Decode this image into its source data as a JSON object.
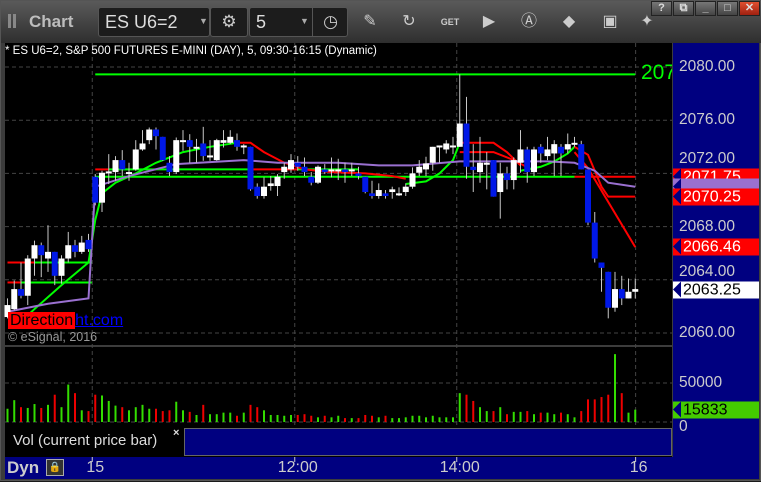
{
  "window": {
    "title": "Chart",
    "buttons": [
      "?",
      "restore",
      "minimize",
      "maximize",
      "close"
    ],
    "symbol": "ES U6=2",
    "interval": "5",
    "toolbar_icons": [
      "gear-icon",
      "clock-icon",
      "pencil-icon",
      "refresh-chart-icon",
      "get-icon",
      "play-icon",
      "a-icon",
      "link-icon",
      "comment-icon",
      "twitter-icon"
    ]
  },
  "chart": {
    "info": "* ES U6=2, S&P 500 FUTURES E-MINI (DAY), 5, 09:30-16:15 (Dynamic)",
    "watermark_a": "Direction",
    "watermark_b": "ht.com",
    "copyright": "© eSignal, 2016",
    "top_level_label": "207",
    "price_labels": [
      "2080.00",
      "2076.00",
      "2072.00",
      "2068.00",
      "2064.00",
      "2060.00"
    ],
    "price_ticks": [
      2080,
      2076,
      2072,
      2068,
      2064,
      2060
    ],
    "markers": [
      {
        "label": "2071.75",
        "price": 2071.75,
        "bg": "#ff0000",
        "fg": "#ffffff"
      },
      {
        "label": "",
        "price": 2071.0,
        "bg": "#9a70d0",
        "fg": "#ffffff"
      },
      {
        "label": "2070.25",
        "price": 2070.25,
        "bg": "#ff0000",
        "fg": "#ffffff"
      },
      {
        "label": "2066.46",
        "price": 2066.46,
        "bg": "#ff0000",
        "fg": "#ffffff"
      },
      {
        "label": "2063.25",
        "price": 2063.25,
        "bg": "#ffffff",
        "fg": "#000000"
      }
    ],
    "time_labels": [
      {
        "label": "15",
        "bar": 13
      },
      {
        "label": "12:00",
        "bar": 43
      },
      {
        "label": "14:00",
        "bar": 67
      },
      {
        "label": "16",
        "bar": 93.5
      }
    ],
    "colors": {
      "up": "#ffffff",
      "down": "#0018e8",
      "wick": "#c8c8c8",
      "vol_up": "#33dd00",
      "vol_down": "#ee0000",
      "green": "#00ff00",
      "red": "#ff0000",
      "purple": "#9a70d0"
    },
    "candles": [
      [
        2061.2,
        2062.6,
        2061.1,
        2062.1
      ],
      [
        2061.8,
        2063.95,
        2061.7,
        2063.3
      ],
      [
        2063.3,
        2065.3,
        2062.6,
        2062.8
      ],
      [
        2062.8,
        2065.85,
        2062.1,
        2065.6
      ],
      [
        2065.6,
        2066.95,
        2064.3,
        2066.6
      ],
      [
        2066.6,
        2066.8,
        2064.2,
        2065.85
      ],
      [
        2065.6,
        2068.1,
        2064.6,
        2066.1
      ],
      [
        2066.1,
        2066.1,
        2063.6,
        2064.3
      ],
      [
        2064.3,
        2065.85,
        2063.7,
        2065.6
      ],
      [
        2065.6,
        2067.6,
        2065.3,
        2066.6
      ],
      [
        2066.6,
        2067.0,
        2065.7,
        2066.1
      ],
      [
        2066.1,
        2067.3,
        2065.95,
        2066.8
      ],
      [
        2067.0,
        2067.45,
        2066.1,
        2066.3
      ],
      [
        2071.75,
        2071.95,
        2069.6,
        2069.8
      ],
      [
        2069.8,
        2072.2,
        2069.1,
        2072.05
      ],
      [
        2072.0,
        2073.45,
        2071.2,
        2072.15
      ],
      [
        2072.1,
        2073.3,
        2071.45,
        2073.0
      ],
      [
        2073.0,
        2073.75,
        2071.8,
        2072.3
      ],
      [
        2072.0,
        2072.8,
        2071.45,
        2072.1
      ],
      [
        2072.3,
        2074.5,
        2072.2,
        2073.8
      ],
      [
        2073.8,
        2075.25,
        2073.7,
        2074.25
      ],
      [
        2074.5,
        2075.45,
        2074.2,
        2075.3
      ],
      [
        2075.3,
        2075.45,
        2073.8,
        2074.8
      ],
      [
        2074.75,
        2074.75,
        2072.95,
        2073.0
      ],
      [
        2072.8,
        2073.3,
        2071.8,
        2072.1
      ],
      [
        2072.1,
        2074.7,
        2071.95,
        2074.5
      ],
      [
        2074.4,
        2075.25,
        2073.7,
        2074.5
      ],
      [
        2074.5,
        2074.95,
        2072.8,
        2074.0
      ],
      [
        2073.85,
        2074.6,
        2072.8,
        2074.0
      ],
      [
        2074.25,
        2075.5,
        2072.95,
        2073.3
      ],
      [
        2073.2,
        2074.5,
        2072.95,
        2073.35
      ],
      [
        2073.0,
        2074.6,
        2072.95,
        2074.5
      ],
      [
        2074.3,
        2075.25,
        2073.95,
        2074.5
      ],
      [
        2074.3,
        2075.25,
        2074.2,
        2074.75
      ],
      [
        2074.5,
        2075.0,
        2073.7,
        2074.0
      ],
      [
        2074.0,
        2074.2,
        2073.45,
        2074.1
      ],
      [
        2074.0,
        2074.0,
        2070.7,
        2070.8
      ],
      [
        2071.0,
        2071.25,
        2070.1,
        2070.3
      ],
      [
        2070.3,
        2071.7,
        2070.1,
        2071.0
      ],
      [
        2071.05,
        2071.8,
        2070.7,
        2071.25
      ],
      [
        2071.05,
        2071.95,
        2070.3,
        2071.75
      ],
      [
        2072.1,
        2072.8,
        2071.6,
        2072.5
      ],
      [
        2072.3,
        2073.45,
        2072.05,
        2073.0
      ],
      [
        2072.8,
        2073.3,
        2072.2,
        2072.5
      ],
      [
        2072.5,
        2073.2,
        2071.8,
        2072.1
      ],
      [
        2071.75,
        2072.1,
        2071.1,
        2071.3
      ],
      [
        2071.3,
        2072.6,
        2071.2,
        2072.5
      ],
      [
        2072.3,
        2072.7,
        2071.95,
        2072.1
      ],
      [
        2072.2,
        2073.2,
        2071.7,
        2072.3
      ],
      [
        2072.2,
        2073.1,
        2071.5,
        2072.3
      ],
      [
        2072.3,
        2072.8,
        2071.3,
        2072.1
      ],
      [
        2072.15,
        2072.8,
        2071.8,
        2072.3
      ],
      [
        2072.0,
        2072.5,
        2071.55,
        2071.8
      ],
      [
        2071.75,
        2071.75,
        2070.5,
        2070.6
      ],
      [
        2070.5,
        2071.45,
        2070.1,
        2070.3
      ],
      [
        2070.3,
        2071.25,
        2070.1,
        2070.75
      ],
      [
        2070.5,
        2070.75,
        2070.1,
        2070.3
      ],
      [
        2070.6,
        2071.0,
        2070.1,
        2070.8
      ],
      [
        2070.45,
        2070.95,
        2070.3,
        2070.5
      ],
      [
        2070.6,
        2071.25,
        2070.3,
        2071.0
      ],
      [
        2071.0,
        2072.45,
        2070.85,
        2072.0
      ],
      [
        2072.05,
        2073.0,
        2071.8,
        2072.5
      ],
      [
        2072.3,
        2073.25,
        2071.8,
        2072.75
      ],
      [
        2072.8,
        2074.0,
        2072.2,
        2074.0
      ],
      [
        2074.0,
        2074.1,
        2072.8,
        2074.1
      ],
      [
        2073.8,
        2074.5,
        2073.5,
        2074.25
      ],
      [
        2074.0,
        2074.75,
        2073.45,
        2074.1
      ],
      [
        2074.0,
        2079.45,
        2074.0,
        2075.75
      ],
      [
        2075.75,
        2077.75,
        2071.6,
        2072.5
      ],
      [
        2072.5,
        2074.2,
        2070.6,
        2072.25
      ],
      [
        2072.1,
        2074.75,
        2071.3,
        2072.8
      ],
      [
        2072.7,
        2073.6,
        2070.8,
        2072.8
      ],
      [
        2073.0,
        2073.0,
        2070.25,
        2070.25
      ],
      [
        2070.6,
        2072.8,
        2068.6,
        2072.0
      ],
      [
        2072.0,
        2072.5,
        2070.8,
        2071.5
      ],
      [
        2071.5,
        2073.2,
        2070.8,
        2073.0
      ],
      [
        2072.8,
        2075.25,
        2072.05,
        2073.8
      ],
      [
        2073.8,
        2074.0,
        2071.3,
        2072.1
      ],
      [
        2072.1,
        2074.0,
        2071.8,
        2073.8
      ],
      [
        2074.0,
        2074.2,
        2072.8,
        2073.5
      ],
      [
        2073.3,
        2074.75,
        2073.0,
        2073.8
      ],
      [
        2073.5,
        2074.5,
        2071.8,
        2074.2
      ],
      [
        2074.0,
        2074.2,
        2071.8,
        2073.5
      ],
      [
        2073.8,
        2075.0,
        2073.5,
        2074.2
      ],
      [
        2074.2,
        2074.75,
        2074.0,
        2074.3
      ],
      [
        2074.2,
        2074.45,
        2072.3,
        2072.3
      ],
      [
        2072.3,
        2072.3,
        2068.1,
        2068.3
      ],
      [
        2068.3,
        2069.1,
        2065.3,
        2065.6
      ],
      [
        2065.3,
        2065.3,
        2063.1,
        2064.9
      ],
      [
        2064.6,
        2064.6,
        2061.1,
        2061.9
      ],
      [
        2061.9,
        2064.6,
        2061.6,
        2063.3
      ],
      [
        2063.3,
        2064.3,
        2062.1,
        2062.6
      ],
      [
        2062.6,
        2064.1,
        2062.6,
        2063.1
      ],
      [
        2063.1,
        2064.1,
        2062.6,
        2063.3
      ]
    ],
    "levels": [
      {
        "price": 2079.45,
        "from": 13,
        "to": 93,
        "color": "#00ff00"
      },
      {
        "price": 2065.3,
        "from": 0,
        "to": 4,
        "color": "#ff0000"
      },
      {
        "price": 2065.3,
        "from": 4,
        "to": 12.5,
        "color": "#00ff00"
      },
      {
        "price": 2063.8,
        "from": 0,
        "to": 2,
        "color": "#ff0000"
      },
      {
        "price": 2063.8,
        "from": 2,
        "to": 12.5,
        "color": "#00ff00"
      },
      {
        "price": 2071.75,
        "from": 13,
        "to": 84,
        "color": "#00ff00"
      },
      {
        "price": 2071.75,
        "from": 84,
        "to": 93,
        "color": "#ff0000"
      },
      {
        "price": 2072.3,
        "from": 13,
        "to": 15,
        "color": "#ff0000"
      },
      {
        "price": 2072.3,
        "from": 15,
        "to": 36,
        "color": "#00ff00"
      },
      {
        "price": 2072.3,
        "from": 36,
        "to": 43,
        "color": "#ff0000"
      },
      {
        "price": 2072.3,
        "from": 43,
        "to": 52,
        "color": "#00ff00"
      }
    ],
    "lines": [
      {
        "color": "#00ff00",
        "points": [
          [
            1,
            2060.4
          ],
          [
            4,
            2061.8
          ],
          [
            8,
            2063.6
          ],
          [
            12,
            2065.3
          ],
          [
            13,
            2068.5
          ],
          [
            14,
            2070.5
          ],
          [
            16,
            2071.3
          ],
          [
            19,
            2072.0
          ],
          [
            22,
            2072.8
          ],
          [
            26,
            2073.6
          ],
          [
            30,
            2074.0
          ],
          [
            34,
            2074.3
          ]
        ]
      },
      {
        "color": "#ff0000",
        "points": [
          [
            34,
            2074.3
          ],
          [
            36,
            2074.3
          ],
          [
            38,
            2073.6
          ],
          [
            41,
            2072.8
          ],
          [
            44,
            2072.3
          ],
          [
            48,
            2072.1
          ],
          [
            53,
            2072.0
          ],
          [
            57,
            2071.8
          ],
          [
            59,
            2071.6
          ]
        ]
      },
      {
        "color": "#00ff00",
        "points": [
          [
            59,
            2071.2
          ],
          [
            62,
            2071.4
          ],
          [
            64,
            2072.0
          ],
          [
            66,
            2073.0
          ],
          [
            67,
            2074.3
          ]
        ]
      },
      {
        "color": "#ff0000",
        "points": [
          [
            67,
            2074.3
          ],
          [
            72,
            2074.3
          ],
          [
            74,
            2073.6
          ],
          [
            76,
            2072.6
          ]
        ]
      },
      {
        "color": "#ff0000",
        "points": [
          [
            67,
            2073.6
          ],
          [
            72,
            2073.6
          ],
          [
            75,
            2073.0
          ],
          [
            78,
            2072.2
          ]
        ]
      },
      {
        "color": "#00ff00",
        "points": [
          [
            76,
            2072.2
          ],
          [
            79,
            2072.5
          ],
          [
            81,
            2072.9
          ],
          [
            83,
            2073.5
          ],
          [
            84,
            2074.0
          ]
        ]
      },
      {
        "color": "#ff0000",
        "points": [
          [
            84,
            2074.0
          ],
          [
            86,
            2073.4
          ],
          [
            88,
            2071.0
          ],
          [
            89,
            2070.25
          ],
          [
            93,
            2070.25
          ]
        ]
      },
      {
        "color": "#ff0000",
        "points": [
          [
            84,
            2073.6
          ],
          [
            86,
            2072.4
          ],
          [
            93,
            2066.46
          ]
        ]
      },
      {
        "color": "#9a70d0",
        "points": [
          [
            0,
            2061.6
          ],
          [
            6,
            2062.2
          ],
          [
            12,
            2062.6
          ],
          [
            13,
            2071.0
          ],
          [
            18,
            2071.8
          ],
          [
            25,
            2072.7
          ],
          [
            35,
            2073.0
          ],
          [
            40,
            2072.8
          ],
          [
            49,
            2072.8
          ],
          [
            55,
            2072.6
          ],
          [
            60,
            2072.6
          ],
          [
            67,
            2072.9
          ],
          [
            80,
            2072.9
          ],
          [
            84,
            2072.8
          ],
          [
            87,
            2072.2
          ],
          [
            89,
            2071.3
          ],
          [
            93,
            2071.0
          ]
        ]
      }
    ]
  },
  "volume": {
    "label": "Vol (current price bar)",
    "close": "×",
    "axis_labels": [
      "50000",
      "0"
    ],
    "axis_values": [
      50000,
      0
    ],
    "current": "15833",
    "values": [
      17000,
      28000,
      19000,
      18000,
      23000,
      18000,
      22000,
      35000,
      19000,
      48000,
      37000,
      15000,
      14000,
      35000,
      34000,
      27000,
      21000,
      19000,
      15000,
      19000,
      22000,
      17000,
      17000,
      14000,
      15000,
      26000,
      15000,
      13000,
      9000,
      22000,
      10000,
      10000,
      12000,
      12000,
      8000,
      12000,
      22000,
      19000,
      15000,
      9000,
      9000,
      8000,
      9000,
      9000,
      10000,
      8000,
      6000,
      8000,
      6000,
      8000,
      5000,
      5000,
      5000,
      9000,
      8000,
      6000,
      8000,
      5000,
      5000,
      6000,
      8000,
      8000,
      6000,
      8000,
      6000,
      6000,
      6000,
      37000,
      35000,
      27000,
      19000,
      14000,
      14000,
      19000,
      10000,
      13000,
      13000,
      14000,
      10000,
      12000,
      12000,
      10000,
      12000,
      10000,
      6000,
      14000,
      29000,
      29000,
      32000,
      35000,
      87000,
      37000,
      12000,
      15833
    ],
    "up": [
      1,
      1,
      0,
      1,
      1,
      0,
      1,
      0,
      1,
      1,
      0,
      1,
      0,
      0,
      1,
      1,
      1,
      0,
      1,
      1,
      1,
      1,
      0,
      0,
      0,
      1,
      1,
      0,
      1,
      0,
      1,
      1,
      1,
      1,
      0,
      1,
      0,
      0,
      1,
      1,
      1,
      1,
      1,
      0,
      0,
      0,
      1,
      0,
      1,
      1,
      0,
      1,
      0,
      0,
      0,
      1,
      0,
      1,
      1,
      1,
      1,
      1,
      1,
      1,
      1,
      1,
      1,
      1,
      0,
      0,
      1,
      1,
      0,
      1,
      0,
      1,
      1,
      0,
      1,
      0,
      1,
      1,
      0,
      1,
      1,
      0,
      0,
      0,
      0,
      0,
      1,
      0,
      1,
      1
    ]
  },
  "timeaxis": {
    "mode": "Dyn",
    "lock_icon": "lock-clock-icon"
  }
}
